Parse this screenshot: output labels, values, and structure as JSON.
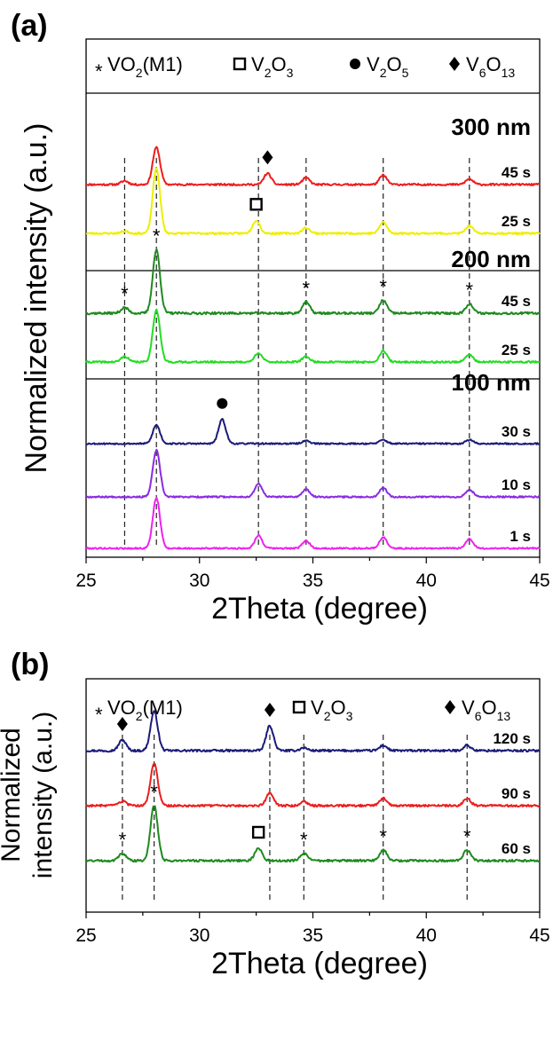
{
  "chart_data": [
    {
      "panel": "(a)",
      "type": "line",
      "xlabel": "2Theta (degree)",
      "ylabel": "Normalized intensity (a.u.)",
      "xlim": [
        25,
        45
      ],
      "xticks": [
        25,
        30,
        35,
        40,
        45
      ],
      "legend": {
        "placement": "top",
        "entries": [
          {
            "marker": "asterisk",
            "symbol": "*",
            "main": "VO",
            "sub1": "2",
            "rest": "(M1)"
          },
          {
            "marker": "open-square",
            "main": "V",
            "sub1": "2",
            "mid": "O",
            "sub2": "3"
          },
          {
            "marker": "filled-circle",
            "main": "V",
            "sub1": "2",
            "mid": "O",
            "sub2": "5"
          },
          {
            "marker": "filled-diamond",
            "main": "V",
            "sub1": "6",
            "mid": "O",
            "sub2": "13"
          }
        ]
      },
      "dashed_lines_x": [
        26.7,
        28.1,
        32.6,
        34.7,
        38.1,
        41.9
      ],
      "groups": [
        {
          "label": "300 nm",
          "series": [
            {
              "name": "45 s",
              "color": "#ee1c1c",
              "noise": 0.025,
              "peaks": [
                [
                  26.7,
                  0.1
                ],
                [
                  28.1,
                  1.0
                ],
                [
                  33.0,
                  0.3
                ],
                [
                  34.7,
                  0.18
                ],
                [
                  38.1,
                  0.25
                ],
                [
                  41.9,
                  0.15
                ]
              ]
            },
            {
              "name": "25 s",
              "color": "#eeee00",
              "noise": 0.025,
              "peaks": [
                [
                  26.7,
                  0.06
                ],
                [
                  28.1,
                  1.75
                ],
                [
                  32.5,
                  0.35
                ],
                [
                  34.7,
                  0.15
                ],
                [
                  38.1,
                  0.3
                ],
                [
                  41.9,
                  0.2
                ]
              ]
            }
          ]
        },
        {
          "label": "200 nm",
          "series": [
            {
              "name": "45 s",
              "color": "#1e8a1e",
              "noise": 0.03,
              "peaks": [
                [
                  26.7,
                  0.15
                ],
                [
                  28.1,
                  1.7
                ],
                [
                  34.7,
                  0.3
                ],
                [
                  38.1,
                  0.35
                ],
                [
                  41.9,
                  0.25
                ]
              ]
            },
            {
              "name": "25 s",
              "color": "#22dd22",
              "noise": 0.025,
              "peaks": [
                [
                  26.7,
                  0.15
                ],
                [
                  28.1,
                  1.4
                ],
                [
                  32.6,
                  0.25
                ],
                [
                  34.7,
                  0.15
                ],
                [
                  38.1,
                  0.3
                ],
                [
                  41.9,
                  0.2
                ]
              ]
            }
          ]
        },
        {
          "label": "100 nm",
          "series": [
            {
              "name": "30 s",
              "color": "#1a1a7a",
              "noise": 0.02,
              "peaks": [
                [
                  28.1,
                  0.5
                ],
                [
                  31.0,
                  0.65
                ],
                [
                  34.7,
                  0.08
                ],
                [
                  38.1,
                  0.1
                ],
                [
                  41.9,
                  0.1
                ]
              ]
            },
            {
              "name": "10 s",
              "color": "#8a2be2",
              "noise": 0.02,
              "peaks": [
                [
                  28.1,
                  1.25
                ],
                [
                  32.6,
                  0.35
                ],
                [
                  34.7,
                  0.2
                ],
                [
                  38.1,
                  0.25
                ],
                [
                  41.9,
                  0.2
                ]
              ]
            },
            {
              "name": "1 s",
              "color": "#ee22ee",
              "noise": 0.02,
              "peaks": [
                [
                  28.1,
                  1.35
                ],
                [
                  32.6,
                  0.35
                ],
                [
                  34.7,
                  0.2
                ],
                [
                  38.1,
                  0.3
                ],
                [
                  41.9,
                  0.25
                ]
              ]
            }
          ]
        }
      ],
      "phase_markers": [
        {
          "marker": "filled-diamond",
          "series": "300 nm 45 s",
          "x": 33.0
        },
        {
          "marker": "open-square",
          "series": "300 nm 25 s",
          "x": 32.5
        },
        {
          "marker": "asterisk",
          "series": "200 nm 45 s",
          "x": 26.7
        },
        {
          "marker": "asterisk",
          "series": "200 nm 45 s",
          "x": 28.1
        },
        {
          "marker": "asterisk",
          "series": "200 nm 45 s",
          "x": 34.7
        },
        {
          "marker": "asterisk",
          "series": "200 nm 45 s",
          "x": 38.1
        },
        {
          "marker": "asterisk",
          "series": "200 nm 45 s",
          "x": 41.9
        },
        {
          "marker": "filled-circle",
          "series": "100 nm 30 s",
          "x": 31.0
        }
      ]
    },
    {
      "panel": "(b)",
      "type": "line",
      "xlabel": "2Theta (degree)",
      "ylabel": [
        "Normalized",
        "intensity (a.u.)"
      ],
      "xlim": [
        25,
        45
      ],
      "xticks": [
        25,
        30,
        35,
        40,
        45
      ],
      "legend": {
        "placement": "top",
        "entries": [
          {
            "marker": "asterisk",
            "symbol": "*",
            "main": "VO",
            "sub1": "2",
            "rest": "(M1)"
          },
          {
            "marker": "open-square",
            "main": "V",
            "sub1": "2",
            "mid": "O",
            "sub2": "3"
          },
          {
            "marker": "filled-diamond",
            "main": "V",
            "sub1": "6",
            "mid": "O",
            "sub2": "13"
          }
        ]
      },
      "dashed_lines_x": [
        26.6,
        28.0,
        33.1,
        34.6,
        38.1,
        41.8
      ],
      "series": [
        {
          "name": "120 s",
          "color": "#1a1a7a",
          "noise": 0.03,
          "peaks": [
            [
              26.6,
              0.3
            ],
            [
              28.0,
              1.1
            ],
            [
              33.1,
              0.7
            ],
            [
              34.6,
              0.08
            ],
            [
              38.1,
              0.15
            ],
            [
              41.8,
              0.15
            ]
          ]
        },
        {
          "name": "90 s",
          "color": "#ee1c1c",
          "noise": 0.03,
          "peaks": [
            [
              26.6,
              0.12
            ],
            [
              28.0,
              1.2
            ],
            [
              33.1,
              0.35
            ],
            [
              34.6,
              0.12
            ],
            [
              38.1,
              0.2
            ],
            [
              41.8,
              0.2
            ]
          ]
        },
        {
          "name": "60 s",
          "color": "#1e8a1e",
          "noise": 0.03,
          "peaks": [
            [
              26.6,
              0.2
            ],
            [
              28.0,
              1.55
            ],
            [
              32.6,
              0.35
            ],
            [
              34.6,
              0.2
            ],
            [
              38.1,
              0.3
            ],
            [
              41.8,
              0.3
            ]
          ]
        }
      ],
      "phase_markers": [
        {
          "marker": "filled-diamond",
          "series": "120 s",
          "x": 26.6
        },
        {
          "marker": "filled-diamond",
          "series": "120 s",
          "x": 33.1
        },
        {
          "marker": "asterisk",
          "series": "60 s",
          "x": 26.6
        },
        {
          "marker": "asterisk",
          "series": "60 s",
          "x": 28.0
        },
        {
          "marker": "open-square",
          "series": "60 s",
          "x": 32.6
        },
        {
          "marker": "asterisk",
          "series": "60 s",
          "x": 34.6
        },
        {
          "marker": "asterisk",
          "series": "60 s",
          "x": 38.1
        },
        {
          "marker": "asterisk",
          "series": "60 s",
          "x": 41.8
        }
      ]
    }
  ]
}
